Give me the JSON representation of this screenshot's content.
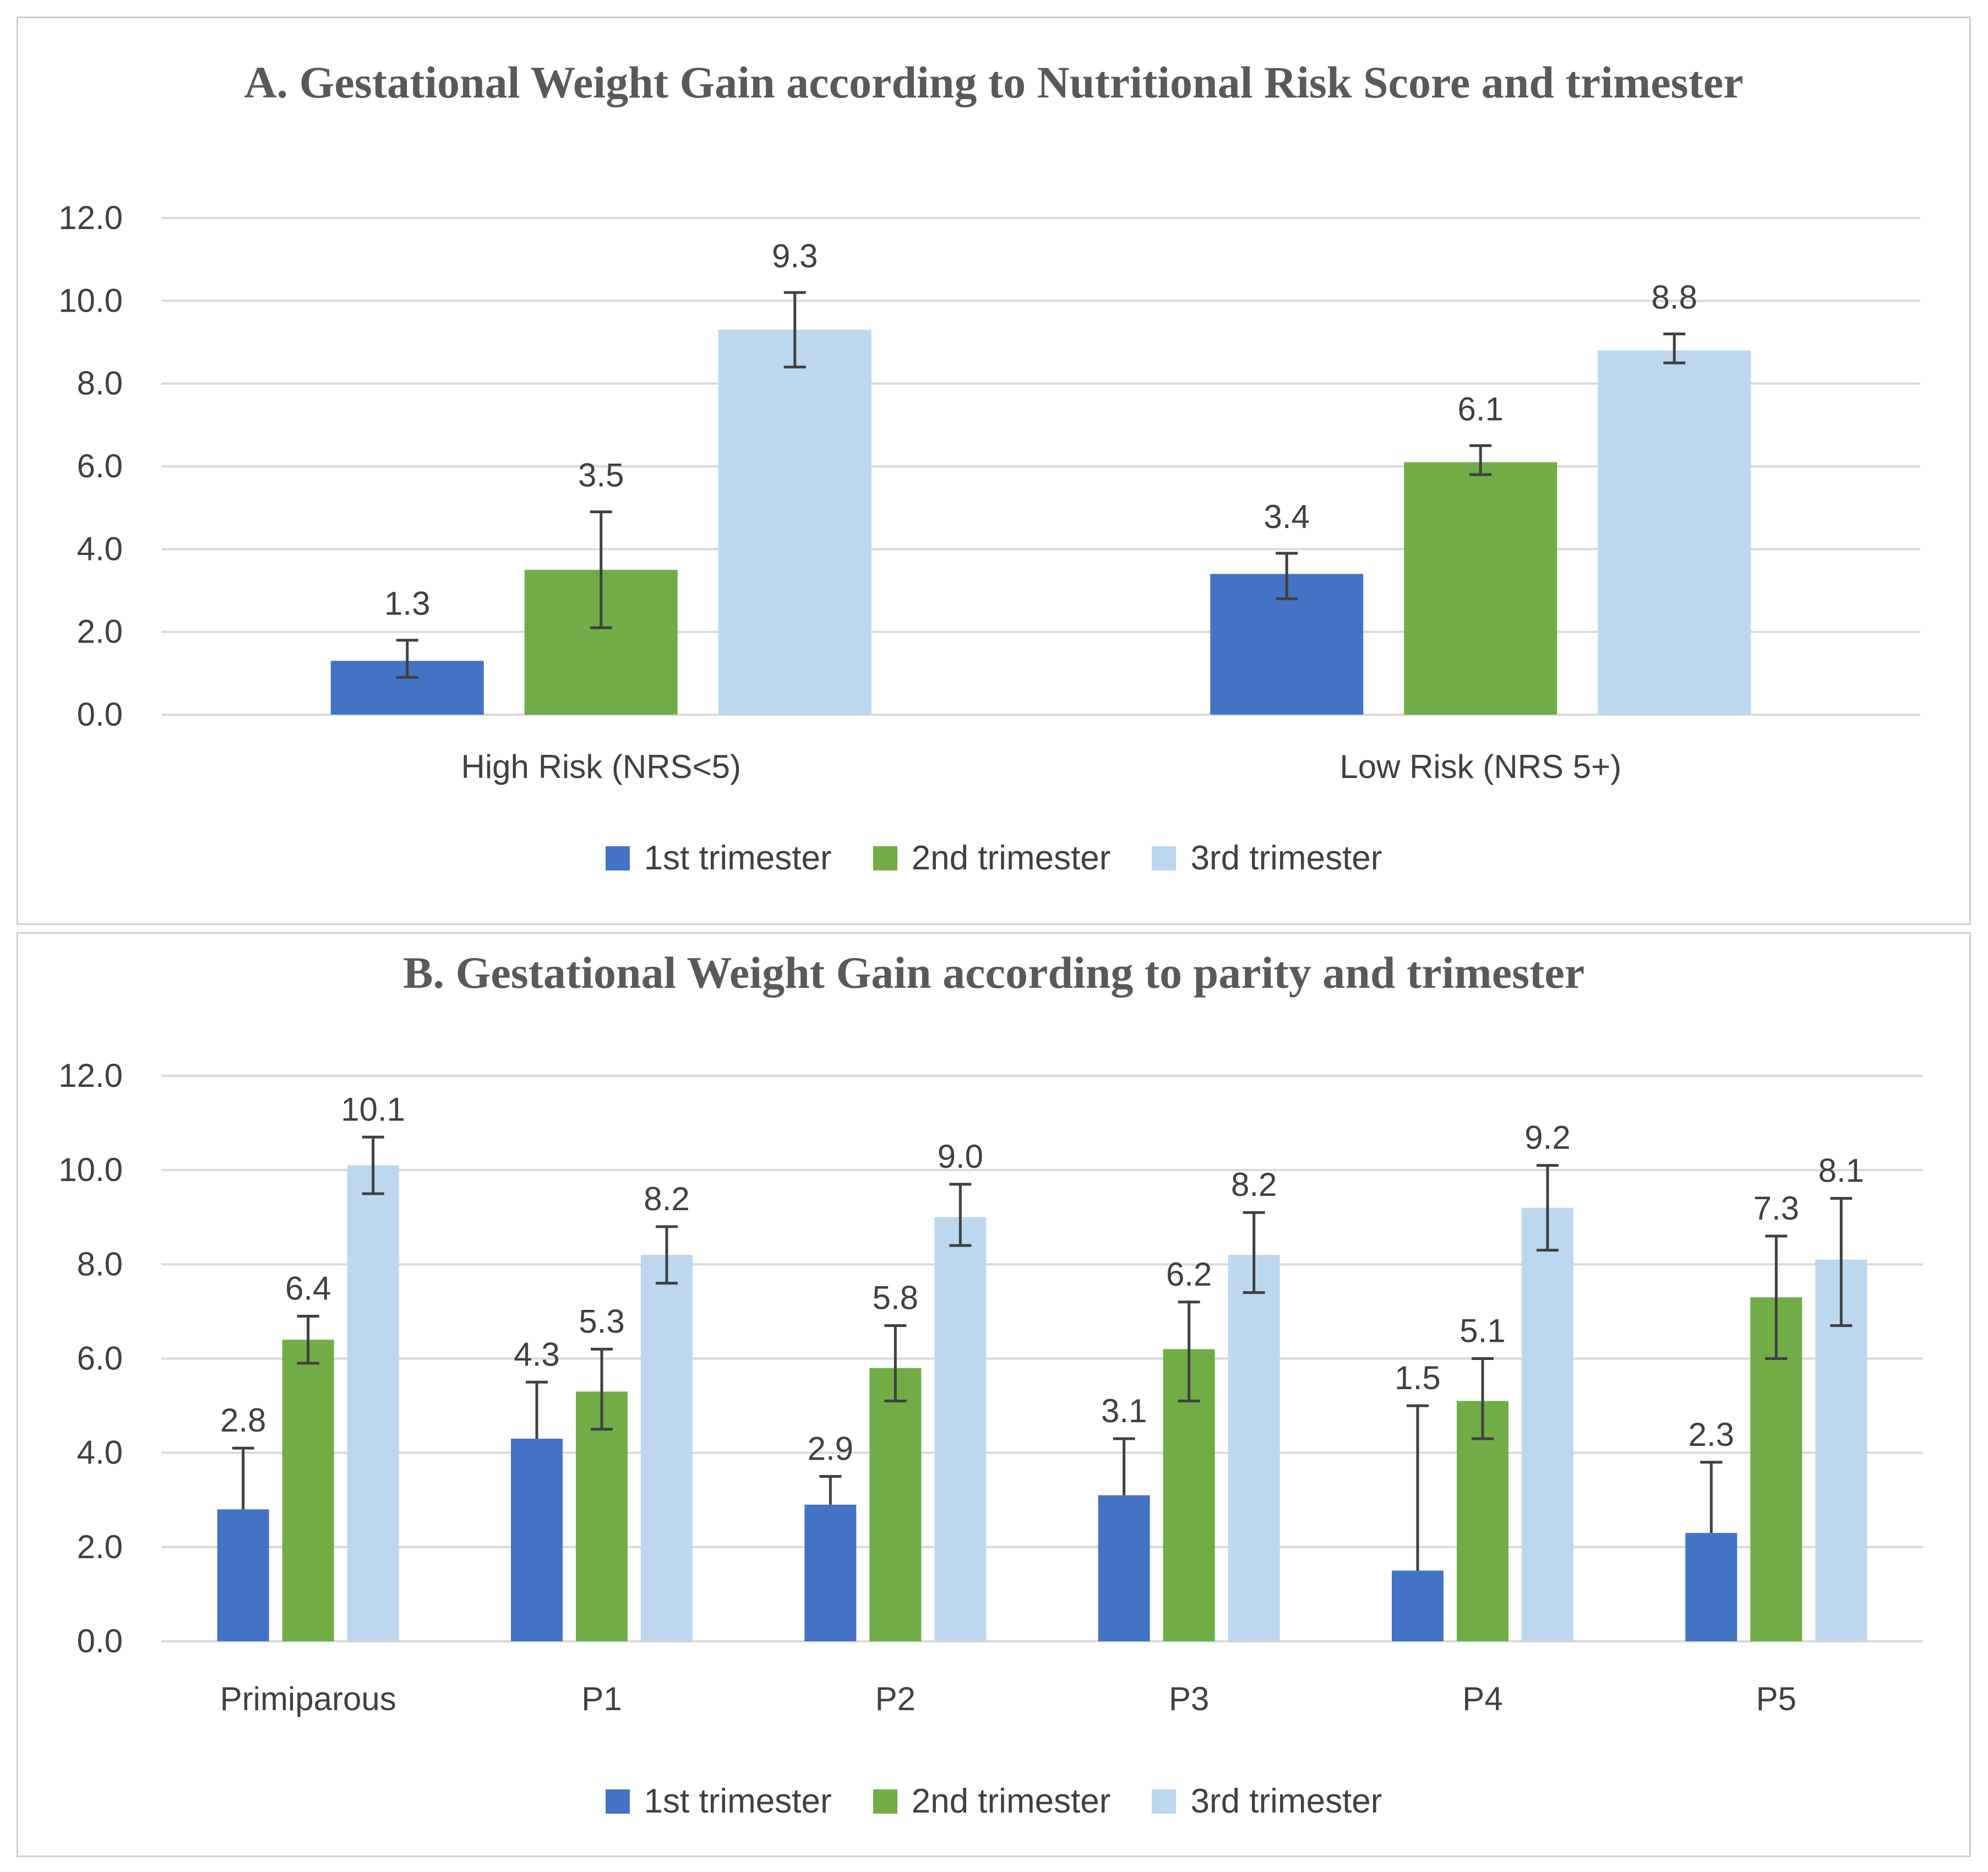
{
  "colors": {
    "series1": "#4472c4",
    "series2": "#70ad47",
    "series3": "#bdd7ee",
    "grid": "#d9d9d9",
    "error_bar": "#404040",
    "text": "#404040"
  },
  "chart_data": [
    {
      "type": "bar",
      "title": "A. Gestational Weight Gain according to Nutritional Risk Score and trimester",
      "categories": [
        "High Risk (NRS<5)",
        "Low Risk (NRS 5+)"
      ],
      "series": [
        {
          "name": "1st trimester",
          "values": [
            1.3,
            3.4
          ],
          "labels": [
            "1.3",
            "3.4"
          ],
          "err_high": [
            1.8,
            3.9
          ],
          "err_low": [
            0.9,
            2.8
          ]
        },
        {
          "name": "2nd trimester",
          "values": [
            3.5,
            6.1
          ],
          "labels": [
            "3.5",
            "6.1"
          ],
          "err_high": [
            4.9,
            6.5
          ],
          "err_low": [
            2.1,
            5.8
          ]
        },
        {
          "name": "3rd trimester",
          "values": [
            9.3,
            8.8
          ],
          "labels": [
            "9.3",
            "8.8"
          ],
          "err_high": [
            10.2,
            9.2
          ],
          "err_low": [
            8.4,
            8.5
          ]
        }
      ],
      "yticks": [
        "0.0",
        "2.0",
        "4.0",
        "6.0",
        "8.0",
        "10.0",
        "12.0"
      ],
      "ylim": [
        0,
        12
      ],
      "xlabel": "",
      "ylabel": "",
      "legend": "bottom",
      "grid": true
    },
    {
      "type": "bar",
      "title": "B. Gestational Weight Gain according to parity and trimester",
      "categories": [
        "Primiparous",
        "P1",
        "P2",
        "P3",
        "P4",
        "P5"
      ],
      "series": [
        {
          "name": "1st trimester",
          "values": [
            2.8,
            4.3,
            2.9,
            3.1,
            1.5,
            2.3
          ],
          "labels": [
            "2.8",
            "4.3",
            "2.9",
            "3.1",
            "1.5",
            "2.3"
          ],
          "err_high": [
            4.1,
            5.5,
            3.5,
            4.3,
            5.0,
            3.8
          ],
          "err_low": [
            2.8,
            4.3,
            2.9,
            3.1,
            1.5,
            2.3
          ]
        },
        {
          "name": "2nd trimester",
          "values": [
            6.4,
            5.3,
            5.8,
            6.2,
            5.1,
            7.3
          ],
          "labels": [
            "6.4",
            "5.3",
            "5.8",
            "6.2",
            "5.1",
            "7.3"
          ],
          "err_high": [
            6.9,
            6.2,
            6.7,
            7.2,
            6.0,
            8.6
          ],
          "err_low": [
            5.9,
            4.5,
            5.1,
            5.1,
            4.3,
            6.0
          ]
        },
        {
          "name": "3rd trimester",
          "values": [
            10.1,
            8.2,
            9.0,
            8.2,
            9.2,
            8.1
          ],
          "labels": [
            "10.1",
            "8.2",
            "9.0",
            "8.2",
            "9.2",
            "8.1"
          ],
          "err_high": [
            10.7,
            8.8,
            9.7,
            9.1,
            10.1,
            9.4
          ],
          "err_low": [
            9.5,
            7.6,
            8.4,
            7.4,
            8.3,
            6.7
          ]
        }
      ],
      "yticks": [
        "0.0",
        "2.0",
        "4.0",
        "6.0",
        "8.0",
        "10.0",
        "12.0"
      ],
      "ylim": [
        0,
        12
      ],
      "xlabel": "",
      "ylabel": "",
      "legend": "bottom",
      "grid": true
    }
  ]
}
